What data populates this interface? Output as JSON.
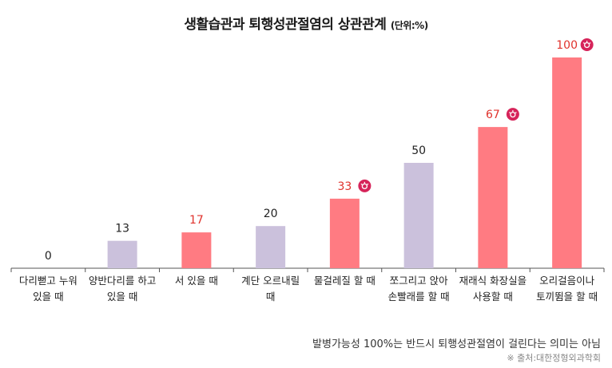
{
  "chart_data": {
    "type": "bar",
    "title": "생활습관과 퇴행성관절염의 상관관계",
    "unit": "(단위:%)",
    "categories": [
      [
        "다리뻗고 누워",
        "있을 때"
      ],
      [
        "양반다리를 하고",
        "있을 때"
      ],
      [
        "서 있을 때"
      ],
      [
        "계단 오르내릴",
        "때"
      ],
      [
        "물걸레질 할 때"
      ],
      [
        "쪼그리고 앉아",
        "손빨래를 할 때"
      ],
      [
        "재래식 화장실을",
        "사용할 때"
      ],
      [
        "오리걸음이나",
        "토끼뜀을 할 때"
      ]
    ],
    "values": [
      0,
      13,
      17,
      20,
      33,
      50,
      67,
      100
    ],
    "highlight": [
      false,
      false,
      true,
      false,
      true,
      false,
      true,
      true
    ],
    "warning_marker": [
      false,
      false,
      false,
      false,
      true,
      false,
      true,
      true
    ],
    "ylim": [
      0,
      100
    ],
    "colors": {
      "normal_bar": "#cbc1dc",
      "highlight_bar": "#ff7b82",
      "highlight_label": "#e0322c",
      "normal_label": "#222222",
      "marker": "#d6245a",
      "axis": "#555555"
    }
  },
  "footnote": "발병가능성 100%는 반드시 퇴행성관절염이 걸린다는 의미는 아님",
  "source": "※ 출처:대한정형외과학회"
}
